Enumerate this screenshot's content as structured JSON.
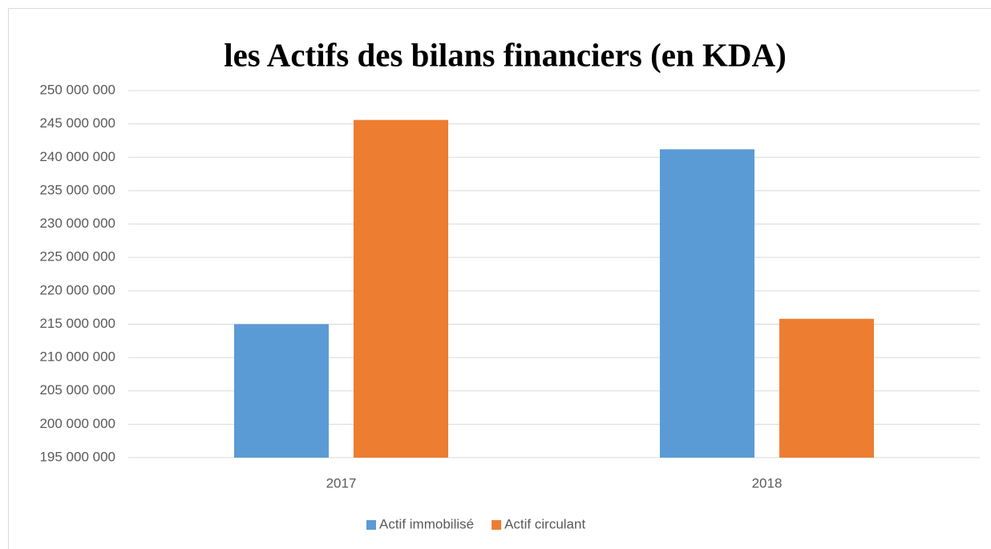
{
  "chart_data": {
    "type": "bar",
    "title": "les Actifs des bilans financiers (en KDA)",
    "categories": [
      "2017",
      "2018"
    ],
    "series": [
      {
        "name": "Actif immobilisé",
        "color": "#5b9bd5",
        "values": [
          215000000,
          241200000
        ]
      },
      {
        "name": "Actif circulant",
        "color": "#ed7d31",
        "values": [
          245600000,
          215800000
        ]
      }
    ],
    "ylim": [
      195000000,
      250000000
    ],
    "yticks": [
      {
        "value": 195000000,
        "label": "195 000 000"
      },
      {
        "value": 200000000,
        "label": "200 000 000"
      },
      {
        "value": 205000000,
        "label": "205 000 000"
      },
      {
        "value": 210000000,
        "label": "210 000 000"
      },
      {
        "value": 215000000,
        "label": "215 000 000"
      },
      {
        "value": 220000000,
        "label": "220 000 000"
      },
      {
        "value": 225000000,
        "label": "225 000 000"
      },
      {
        "value": 230000000,
        "label": "230 000 000"
      },
      {
        "value": 235000000,
        "label": "235 000 000"
      },
      {
        "value": 240000000,
        "label": "240 000 000"
      },
      {
        "value": 245000000,
        "label": "245 000 000"
      },
      {
        "value": 250000000,
        "label": "250 000 000"
      }
    ],
    "grid": true,
    "legend": "bottom"
  }
}
